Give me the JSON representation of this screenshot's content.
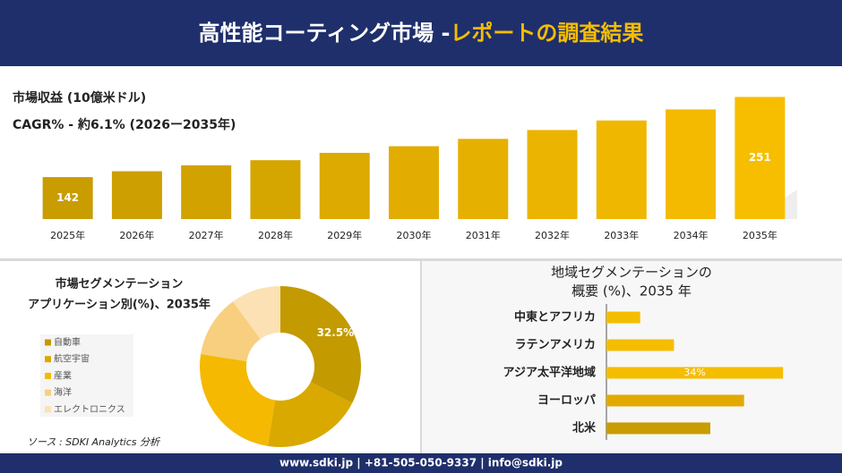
{
  "header": {
    "title_main": "高性能コーティング市場 -",
    "title_accent": "レポートの調査結果"
  },
  "chart_data": [
    {
      "type": "bar",
      "title": "市場収益 (10億米ドル)",
      "subtitle": "CAGR% - 約6.1% (2026ー2035年)",
      "categories": [
        "2025年",
        "2026年",
        "2027年",
        "2028年",
        "2029年",
        "2030年",
        "2031年",
        "2032年",
        "2033年",
        "2034年",
        "2035年"
      ],
      "values": [
        142,
        150,
        158,
        165,
        175,
        184,
        194,
        206,
        219,
        234,
        251
      ],
      "value_labels": [
        "142",
        null,
        null,
        null,
        null,
        null,
        null,
        null,
        null,
        null,
        "251"
      ],
      "colors": [
        "#c99c00",
        "#cd9f00",
        "#d1a200",
        "#d6a600",
        "#dcaa00",
        "#e2ad00",
        "#e6b000",
        "#ebb400",
        "#efb700",
        "#f3ba00",
        "#f7be00"
      ],
      "ylim": [
        85,
        260
      ]
    },
    {
      "type": "pie",
      "donut": true,
      "title": [
        "市場セグメンテーション",
        "アプリケーション別(%)、2035年"
      ],
      "categories": [
        "自動車",
        "航空宇宙",
        "産業",
        "海洋",
        "エレクトロニクス"
      ],
      "values": [
        32.5,
        20,
        25,
        12.5,
        10
      ],
      "value_labels": [
        "32.5%",
        null,
        null,
        null,
        null
      ],
      "colors": [
        "#c39a00",
        "#d9a900",
        "#f4b900",
        "#f8cf7e",
        "#fbe1b4"
      ]
    },
    {
      "type": "barh",
      "title": [
        "地域セグメンテーションの",
        "概要 (%)、2035 年"
      ],
      "categories": [
        "中東とアフリカ",
        "ラテンアメリカ",
        "アジア太平洋地域",
        "ヨーロッパ",
        "北米"
      ],
      "values": [
        6.5,
        13,
        34,
        26.5,
        20
      ],
      "value_labels": [
        null,
        null,
        "34%",
        null,
        null
      ],
      "colors": [
        "#f5bd00",
        "#f5bd00",
        "#f5bd00",
        "#e2aa00",
        "#c99c00"
      ],
      "xlim": [
        0,
        40
      ]
    }
  ],
  "source": "ソース : SDKI Analytics 分析",
  "footer": "www.sdki.jp | +81-505-050-9337 | info@sdki.jp"
}
